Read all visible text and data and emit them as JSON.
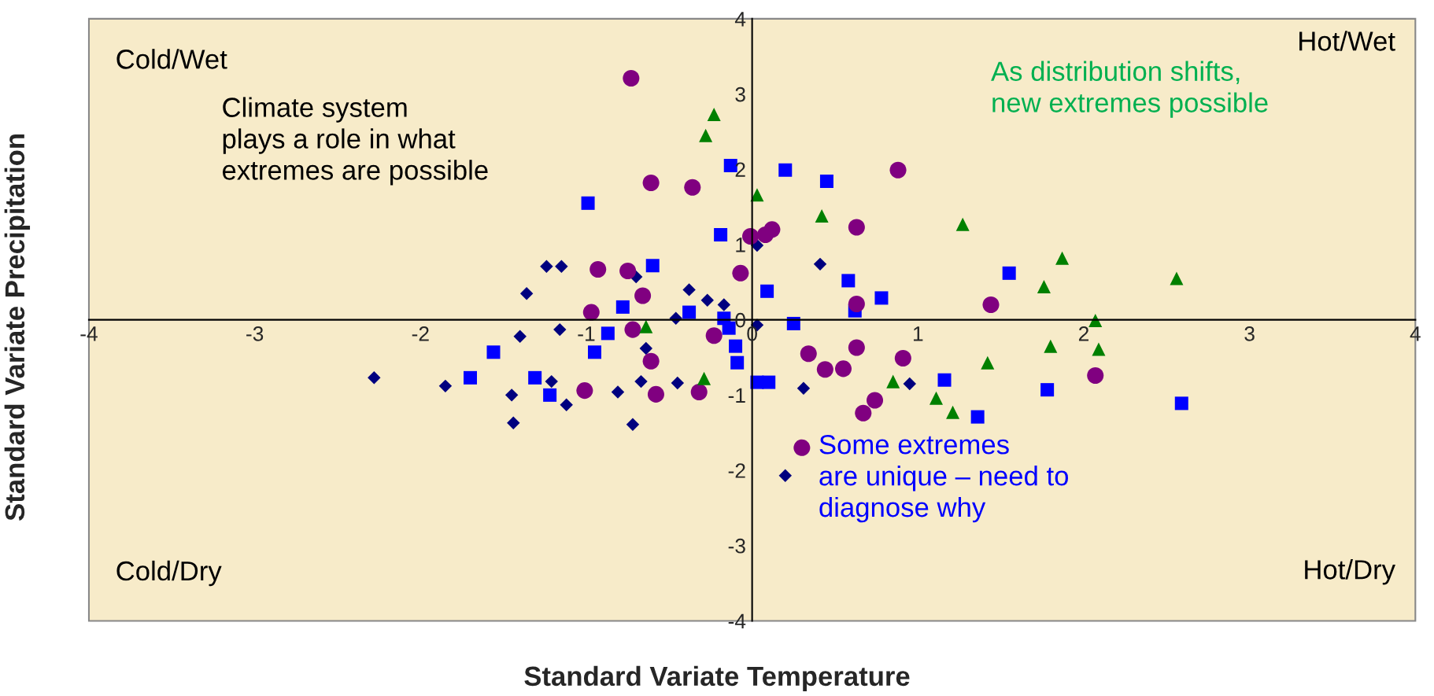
{
  "chart_data": {
    "type": "scatter",
    "xlabel": "Standard Variate Temperature",
    "ylabel": "Standard Variate Precipitation",
    "xlim": [
      -4,
      4
    ],
    "ylim": [
      -4,
      4
    ],
    "xticks": [
      -4,
      -3,
      -2,
      -1,
      0,
      1,
      2,
      3,
      4
    ],
    "yticks": [
      -4,
      -3,
      -2,
      -1,
      0,
      1,
      2,
      3,
      4
    ],
    "grid": false,
    "legend": false,
    "annotations": [
      "Cold/Wet",
      "Hot/Wet",
      "Cold/Dry",
      "Hot/Dry",
      "Climate system\nplays a role in what\nextremes are possible",
      "As distribution shifts,\nnew extremes possible",
      "Some extremes\nare unique – need to\ndiagnose why"
    ],
    "series": [
      {
        "marker": "diamond",
        "color": "#00007f",
        "x": [
          -2.28,
          -1.85,
          -1.45,
          -1.44,
          -1.36,
          -1.4,
          -1.24,
          -1.15,
          -1.21,
          -1.16,
          -1.12,
          -0.81,
          -0.72,
          -0.7,
          -0.67,
          -0.64,
          -0.46,
          -0.38,
          -0.45,
          -0.27,
          -0.17,
          0.03,
          0.03,
          0.2,
          0.31,
          0.41,
          0.95
        ],
        "values": [
          -0.77,
          -0.88,
          -1.0,
          -1.37,
          0.35,
          -0.22,
          0.71,
          0.71,
          -0.82,
          -0.13,
          -1.13,
          -0.96,
          -1.39,
          0.57,
          -0.82,
          -0.38,
          0.02,
          0.4,
          -0.84,
          0.26,
          0.2,
          0.99,
          -0.07,
          -2.07,
          -0.91,
          0.74,
          -0.85
        ]
      },
      {
        "marker": "square",
        "color": "#0000ff",
        "x": [
          -0.99,
          -1.56,
          -1.7,
          -1.31,
          -1.22,
          -0.95,
          -0.87,
          -0.78,
          -0.6,
          -0.38,
          -0.19,
          -0.13,
          -0.17,
          -0.14,
          -0.1,
          -0.09,
          0.03,
          0.1,
          0.09,
          0.25,
          0.2,
          0.45,
          0.58,
          0.62,
          0.78,
          1.16,
          1.36,
          1.55,
          1.78,
          2.59
        ],
        "values": [
          1.55,
          -0.43,
          -0.77,
          -0.77,
          -1.0,
          -0.43,
          -0.18,
          0.17,
          0.72,
          0.1,
          1.13,
          2.05,
          0.02,
          -0.11,
          -0.35,
          -0.57,
          -0.83,
          -0.83,
          0.38,
          -0.05,
          1.99,
          1.84,
          0.52,
          0.12,
          0.29,
          -0.8,
          -1.29,
          0.62,
          -0.93,
          -1.11
        ]
      },
      {
        "marker": "circle",
        "color": "#800080",
        "x": [
          -0.73,
          -0.61,
          -0.36,
          -0.93,
          -0.75,
          -0.66,
          -0.97,
          -0.72,
          -0.61,
          -0.58,
          -1.01,
          -0.32,
          -0.23,
          -0.07,
          -0.01,
          0.08,
          0.12,
          0.34,
          0.3,
          0.44,
          0.55,
          0.63,
          0.63,
          0.63,
          0.67,
          0.74,
          0.88,
          0.91,
          1.44,
          2.07
        ],
        "values": [
          3.21,
          1.82,
          1.76,
          0.67,
          0.65,
          0.32,
          0.1,
          -0.13,
          -0.55,
          -0.99,
          -0.94,
          -0.96,
          -0.21,
          0.62,
          1.11,
          1.13,
          1.2,
          -0.45,
          -1.7,
          -0.66,
          -0.65,
          -0.37,
          1.23,
          0.21,
          -1.24,
          -1.07,
          1.99,
          -0.51,
          0.2,
          -0.74
        ]
      },
      {
        "marker": "triangle",
        "color": "#008000",
        "x": [
          -0.23,
          -0.28,
          0.03,
          0.42,
          -0.64,
          -0.29,
          0.85,
          1.11,
          1.21,
          1.27,
          1.42,
          1.76,
          1.8,
          1.87,
          2.07,
          2.09,
          2.56
        ],
        "values": [
          2.73,
          2.45,
          1.66,
          1.38,
          -0.09,
          -0.78,
          -0.82,
          -1.04,
          -1.23,
          1.27,
          -0.57,
          0.44,
          -0.35,
          0.82,
          -0.01,
          -0.39,
          0.55
        ]
      }
    ]
  }
}
